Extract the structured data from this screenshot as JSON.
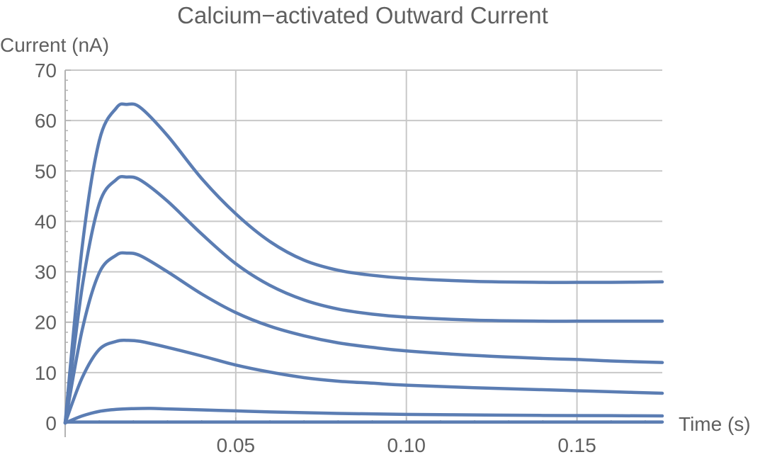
{
  "chart_data": {
    "type": "line",
    "title": "Calcium−activated Outward Current",
    "xlabel": "Time (s)",
    "ylabel": "Current (nA)",
    "xlim": [
      0,
      0.175
    ],
    "ylim": [
      0,
      70
    ],
    "x_ticks": [
      "0.05",
      "0.10",
      "0.15"
    ],
    "x_tick_values": [
      0.05,
      0.1,
      0.15
    ],
    "y_ticks": [
      "0",
      "10",
      "20",
      "30",
      "40",
      "50",
      "60",
      "70"
    ],
    "y_tick_values": [
      0,
      10,
      20,
      30,
      40,
      50,
      60,
      70
    ],
    "grid": true,
    "line_color": "#5b7db3",
    "series": [
      {
        "x": [
          0,
          0.005,
          0.01,
          0.015,
          0.018,
          0.022,
          0.03,
          0.04,
          0.05,
          0.06,
          0.07,
          0.08,
          0.09,
          0.1,
          0.12,
          0.14,
          0.15,
          0.16,
          0.175
        ],
        "values": [
          0,
          35,
          56,
          62.5,
          63.2,
          62.6,
          57,
          48.5,
          41.5,
          36,
          32.3,
          30.3,
          29.3,
          28.7,
          28.1,
          27.9,
          27.9,
          27.9,
          28.0
        ]
      },
      {
        "x": [
          0,
          0.005,
          0.01,
          0.015,
          0.018,
          0.022,
          0.03,
          0.04,
          0.05,
          0.06,
          0.07,
          0.08,
          0.09,
          0.1,
          0.12,
          0.14,
          0.15,
          0.16,
          0.175
        ],
        "values": [
          0,
          27,
          43.5,
          48.3,
          48.8,
          48.2,
          44,
          37.5,
          31.6,
          27.3,
          24.4,
          22.6,
          21.6,
          21.0,
          20.4,
          20.2,
          20.2,
          20.2,
          20.2
        ]
      },
      {
        "x": [
          0,
          0.005,
          0.01,
          0.015,
          0.018,
          0.022,
          0.03,
          0.04,
          0.05,
          0.06,
          0.07,
          0.08,
          0.09,
          0.1,
          0.12,
          0.14,
          0.15,
          0.16,
          0.175
        ],
        "values": [
          0,
          18.5,
          29.8,
          33.3,
          33.7,
          33.2,
          30,
          25.6,
          21.9,
          19.2,
          17.3,
          15.9,
          15.0,
          14.3,
          13.4,
          12.8,
          12.6,
          12.3,
          12.0
        ]
      },
      {
        "x": [
          0,
          0.005,
          0.01,
          0.015,
          0.018,
          0.022,
          0.03,
          0.04,
          0.05,
          0.06,
          0.07,
          0.08,
          0.09,
          0.1,
          0.12,
          0.14,
          0.15,
          0.16,
          0.175
        ],
        "values": [
          0,
          9,
          14.6,
          16.2,
          16.4,
          16.2,
          15,
          13.3,
          11.5,
          10.1,
          9.0,
          8.3,
          7.9,
          7.5,
          7.0,
          6.6,
          6.4,
          6.2,
          5.9
        ]
      },
      {
        "x": [
          0,
          0.005,
          0.01,
          0.015,
          0.02,
          0.025,
          0.03,
          0.04,
          0.05,
          0.06,
          0.08,
          0.1,
          0.12,
          0.14,
          0.16,
          0.175
        ],
        "values": [
          0,
          1.4,
          2.3,
          2.7,
          2.85,
          2.9,
          2.8,
          2.6,
          2.4,
          2.2,
          1.9,
          1.7,
          1.6,
          1.5,
          1.45,
          1.4
        ]
      },
      {
        "x": [
          0,
          0.05,
          0.1,
          0.15,
          0.175
        ],
        "values": [
          0.2,
          0.2,
          0.2,
          0.2,
          0.2
        ]
      }
    ]
  }
}
